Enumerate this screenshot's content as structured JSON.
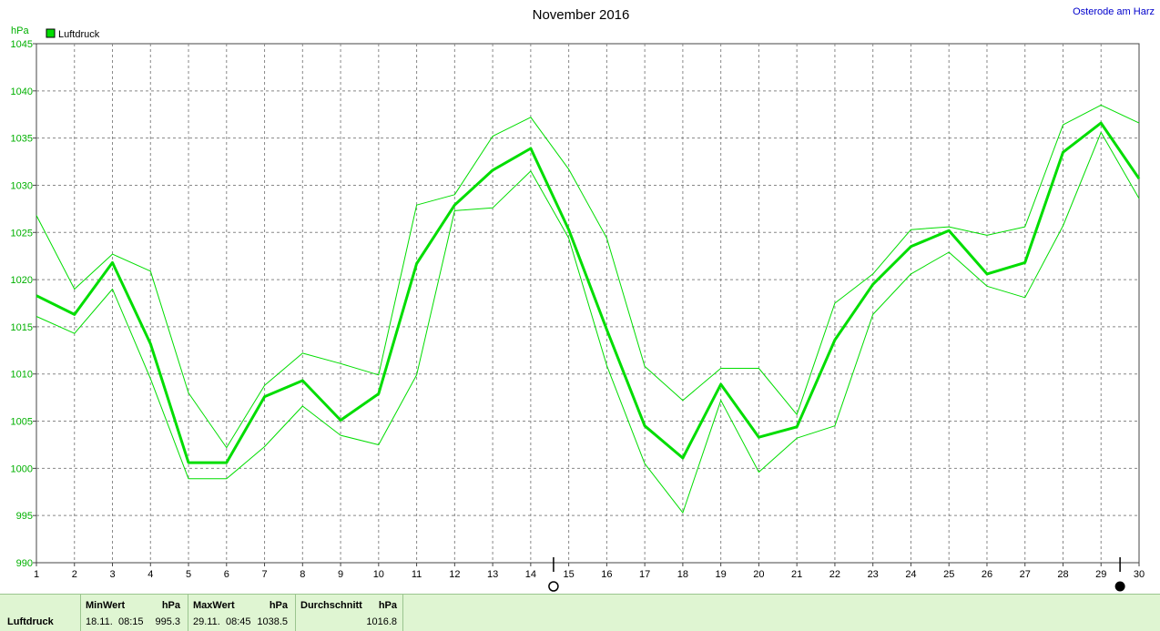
{
  "header": {
    "title": "November 2016",
    "location": "Osterode am Harz",
    "unit_label": "hPa"
  },
  "legend": {
    "label": "Luftdruck",
    "color": "#00dd00"
  },
  "chart_data": {
    "type": "line",
    "title": "November 2016",
    "ylabel": "hPa",
    "ylim": [
      990,
      1045
    ],
    "y_ticks": [
      990,
      995,
      1000,
      1005,
      1010,
      1015,
      1020,
      1025,
      1030,
      1035,
      1040,
      1045
    ],
    "x": [
      1,
      2,
      3,
      4,
      5,
      6,
      7,
      8,
      9,
      10,
      11,
      12,
      13,
      14,
      15,
      16,
      17,
      18,
      19,
      20,
      21,
      22,
      23,
      24,
      25,
      26,
      27,
      28,
      29,
      30
    ],
    "xlim": [
      1,
      30
    ],
    "grid": true,
    "legend_position": "top-left",
    "series": [
      {
        "name": "Luftdruck",
        "role": "main",
        "color": "#00dd00",
        "values": [
          1018.3,
          1016.3,
          1021.8,
          1013.2,
          1000.6,
          1000.6,
          1007.6,
          1009.3,
          1005.1,
          1007.9,
          1021.7,
          1027.9,
          1031.6,
          1033.9,
          1025.3,
          1014.7,
          1004.5,
          1001.1,
          1008.9,
          1003.3,
          1004.4,
          1013.6,
          1019.5,
          1023.5,
          1025.2,
          1020.6,
          1021.8,
          1033.5,
          1036.6,
          1030.7
        ]
      },
      {
        "role": "upper",
        "color": "#00dd00",
        "values": [
          1026.8,
          1019.0,
          1022.7,
          1020.9,
          1008.0,
          1002.2,
          1008.8,
          1012.2,
          1011.1,
          1009.9,
          1027.9,
          1029.0,
          1035.2,
          1037.2,
          1031.7,
          1024.4,
          1010.8,
          1007.2,
          1010.6,
          1010.6,
          1005.7,
          1017.5,
          1020.6,
          1025.3,
          1025.6,
          1024.7,
          1025.6,
          1036.4,
          1038.5,
          1036.6
        ]
      },
      {
        "role": "lower",
        "color": "#00dd00",
        "values": [
          1016.1,
          1014.3,
          1019.0,
          1009.5,
          998.9,
          998.9,
          1002.3,
          1006.6,
          1003.5,
          1002.5,
          1009.9,
          1027.3,
          1027.6,
          1031.5,
          1024.4,
          1010.9,
          1000.5,
          995.3,
          1007.2,
          999.6,
          1003.2,
          1004.5,
          1016.3,
          1020.6,
          1022.9,
          1019.3,
          1018.1,
          1025.7,
          1035.6,
          1028.6
        ]
      }
    ],
    "markers": [
      {
        "x": 14.6,
        "symbol": "full-moon"
      },
      {
        "x": 29.5,
        "symbol": "new-moon"
      }
    ]
  },
  "stats": {
    "row_label": "Luftdruck",
    "min_header": "MinWert",
    "min_unit": "hPa",
    "min_date": "18.11.",
    "min_time": "08:15",
    "min_value": "995.3",
    "max_header": "MaxWert",
    "max_unit": "hPa",
    "max_date": "29.11.",
    "max_time": "08:45",
    "max_value": "1038.5",
    "avg_header": "Durchschnitt",
    "avg_unit": "hPa",
    "avg_value": "1016.8"
  }
}
